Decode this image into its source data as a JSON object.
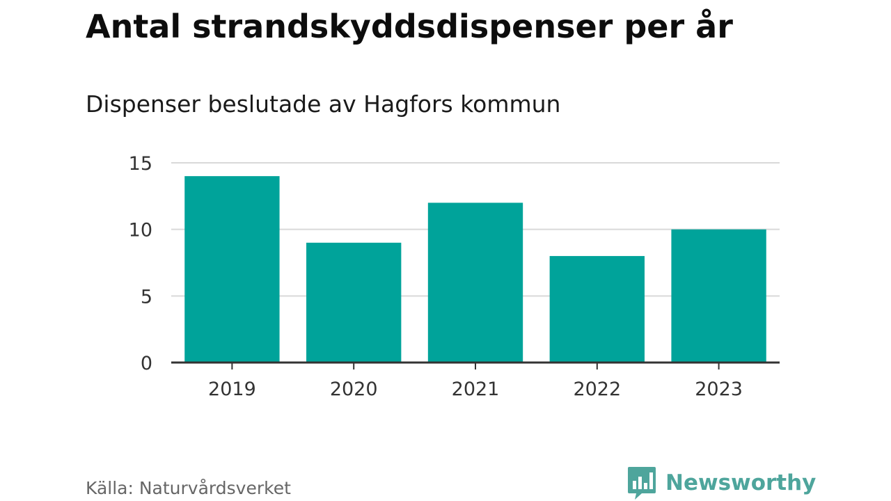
{
  "header": {
    "title": "Antal strandskyddsdispenser per år",
    "subtitle": "Dispenser beslutade av Hagfors kommun"
  },
  "footer": {
    "source": "Källa: Naturvårdsverket",
    "brand": "Newsworthy",
    "brand_icon": "bar-chart-speech-bubble-icon"
  },
  "colors": {
    "bar": "#00a39a",
    "grid": "#d9d9d9",
    "axis": "#333333",
    "brand": "#4ea59c"
  },
  "chart_data": {
    "type": "bar",
    "title": "Antal strandskyddsdispenser per år",
    "subtitle": "Dispenser beslutade av Hagfors kommun",
    "categories": [
      "2019",
      "2020",
      "2021",
      "2022",
      "2023"
    ],
    "values": [
      14,
      9,
      12,
      8,
      10
    ],
    "xlabel": "",
    "ylabel": "",
    "ylim": [
      0,
      15
    ],
    "yticks": [
      0,
      5,
      10,
      15
    ],
    "grid": true,
    "legend": "none"
  }
}
